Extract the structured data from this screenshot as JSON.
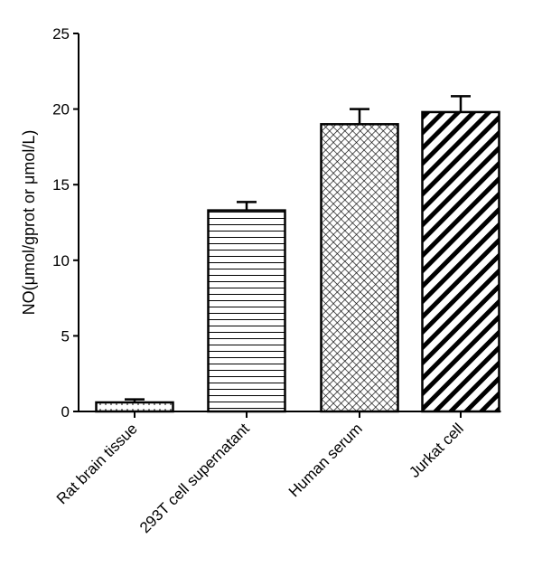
{
  "chart_data": {
    "type": "bar",
    "categories": [
      "Rat brain tissue",
      "293T cell supernatant",
      "Human serum",
      "Jurkat cell"
    ],
    "values": [
      0.6,
      13.3,
      19.0,
      19.8
    ],
    "errors": [
      0.2,
      0.55,
      1.0,
      1.05
    ],
    "patterns": [
      "dots",
      "horizontal-lines",
      "crosshatch",
      "diagonal-stripes"
    ],
    "title": "",
    "xlabel": "",
    "ylabel": "NO(μmol/gprot or μmol/L)",
    "ylim": [
      0,
      25
    ],
    "yticks": [
      0,
      5,
      10,
      15,
      20,
      25
    ],
    "grid": false,
    "colors": {
      "bar_fill": "#ffffff",
      "pattern": "#000000",
      "axis": "#000000"
    }
  }
}
